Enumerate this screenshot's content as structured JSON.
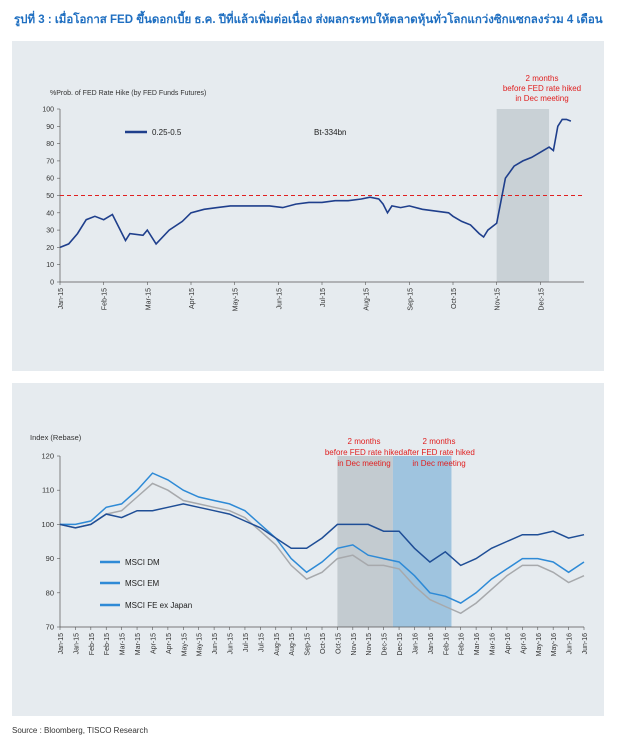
{
  "title": "รูปที่ 3 : เมื่อโอกาส FED ขึ้นดอกเบี้ย ธ.ค. ปีที่แล้วเพิ่มต่อเนื่อง ส่งผลกระทบให้ตลาดหุ้นทั่วโลกแกว่งซิกแซกลงร่วม 4 เดือน",
  "source": "Source : Bloomberg, TISCO Research",
  "chart_data": [
    {
      "type": "line",
      "title": "",
      "ylabel": "%Prob. of FED Rate Hike (by FED Funds Futures)",
      "xlabel": "",
      "ylim": [
        0,
        100
      ],
      "yticks": [
        "0",
        "10",
        "20",
        "30",
        "40",
        "50",
        "60",
        "70",
        "80",
        "90",
        "100"
      ],
      "x_tick_labels": [
        "Jan-15",
        "Feb-15",
        "Mar-15",
        "Apr-15",
        "May-15",
        "Jun-15",
        "Jul-15",
        "Aug-15",
        "Sep-15",
        "Oct-15",
        "Nov-15",
        "Dec-15"
      ],
      "legend": {
        "position": "top-left",
        "entries": [
          "0.25-0.5"
        ],
        "note": "Bt-334bn"
      },
      "reference_line": {
        "y": 50,
        "style": "dashed",
        "color": "#e02020"
      },
      "shaded_regions": [
        {
          "from": "Nov-15",
          "to": "Dec-15",
          "label_lines": [
            "2 months",
            "before FED rate hiked",
            "in Dec meeting"
          ],
          "color": "#c9d1d6"
        }
      ],
      "series": [
        {
          "name": "0.25-0.5",
          "color": "#1f3f8c",
          "x": [
            0,
            0.2,
            0.4,
            0.6,
            0.8,
            1.0,
            1.2,
            1.5,
            1.6,
            1.9,
            2.0,
            2.2,
            2.5,
            2.8,
            3.0,
            3.3,
            3.6,
            3.9,
            4.2,
            4.5,
            4.8,
            5.1,
            5.4,
            5.7,
            6.0,
            6.3,
            6.6,
            6.9,
            7.1,
            7.3,
            7.4,
            7.5,
            7.6,
            7.8,
            8.0,
            8.3,
            8.6,
            8.9,
            9.0,
            9.2,
            9.4,
            9.6,
            9.7,
            9.8,
            9.9,
            10.0,
            10.2,
            10.4,
            10.6,
            10.8,
            11.0,
            11.2,
            11.3,
            11.4,
            11.5,
            11.6,
            11.7
          ],
          "y": [
            20,
            22,
            28,
            36,
            38,
            36,
            39,
            24,
            28,
            27,
            30,
            22,
            30,
            35,
            40,
            42,
            43,
            44,
            44,
            44,
            44,
            43,
            45,
            46,
            46,
            47,
            47,
            48,
            49,
            48,
            45,
            40,
            44,
            43,
            44,
            42,
            41,
            40,
            38,
            35,
            33,
            28,
            26,
            30,
            32,
            34,
            60,
            67,
            70,
            72,
            75,
            78,
            76,
            90,
            94,
            94,
            93
          ]
        }
      ]
    },
    {
      "type": "line",
      "title": "",
      "ylabel": "Index (Rebase)",
      "xlabel": "",
      "ylim": [
        70,
        120
      ],
      "yticks": [
        "70",
        "80",
        "90",
        "100",
        "110",
        "120"
      ],
      "x_tick_labels": [
        "Jan-15",
        "Feb-15",
        "Mar-15",
        "Apr-15",
        "May-15",
        "Jun-15",
        "Jul-15",
        "Aug-15",
        "Sep-15",
        "Oct-15",
        "Nov-15",
        "Dec-15",
        "Jan-16",
        "Feb-16",
        "Mar-16",
        "Apr-16",
        "May-16",
        "Jun-16"
      ],
      "x_tick_labels_dense": [
        "Jan-15",
        "Jan-15",
        "Feb-15",
        "Feb-15",
        "Mar-15",
        "Mar-15",
        "Apr-15",
        "Apr-15",
        "May-15",
        "May-15",
        "Jun-15",
        "Jun-15",
        "Jul-15",
        "Jul-15",
        "Aug-15",
        "Aug-15",
        "Sep-15",
        "Oct-15",
        "Oct-15",
        "Nov-15",
        "Nov-15",
        "Dec-15",
        "Dec-15",
        "Jan-16",
        "Jan-16",
        "Feb-16",
        "Feb-16",
        "Mar-16",
        "Mar-16",
        "Apr-16",
        "Apr-16",
        "May-16",
        "May-16",
        "Jun-16",
        "Jun-16"
      ],
      "legend": {
        "position": "bottom-left",
        "entries": [
          "MSCI DM",
          "MSCI EM",
          "MSCI FE ex Japan"
        ]
      },
      "shaded_regions": [
        {
          "from": "Oct-15",
          "to": "Dec-15",
          "label_lines": [
            "2 months",
            "before FED rate hiked",
            "in Dec meeting"
          ],
          "color": "#c3cbd0"
        },
        {
          "from": "Dec-15",
          "to": "Feb-16",
          "label_lines": [
            "2 months",
            "after FED rate hiked",
            "in Dec meeting"
          ],
          "color": "#9fc4df"
        }
      ],
      "series": [
        {
          "name": "MSCI DM",
          "color": "#1f4e96",
          "x": [
            0,
            0.5,
            1.0,
            1.5,
            2.0,
            2.5,
            3.0,
            3.5,
            4.0,
            4.5,
            5.0,
            5.5,
            6.0,
            6.5,
            7.0,
            7.5,
            8.0,
            8.5,
            9.0,
            9.5,
            10.0,
            10.5,
            11.0,
            11.5,
            12.0,
            12.5,
            13.0,
            13.5,
            14.0,
            14.5,
            15.0,
            15.5,
            16.0,
            16.5,
            17.0
          ],
          "y": [
            100,
            99,
            100,
            103,
            102,
            104,
            104,
            105,
            106,
            105,
            104,
            103,
            101,
            99,
            96,
            93,
            93,
            96,
            100,
            100,
            100,
            98,
            98,
            93,
            89,
            92,
            88,
            90,
            93,
            95,
            97,
            97,
            98,
            96,
            97
          ]
        },
        {
          "name": "MSCI EM",
          "color": "#2e8ad6",
          "x": [
            0,
            0.5,
            1.0,
            1.5,
            2.0,
            2.5,
            3.0,
            3.5,
            4.0,
            4.5,
            5.0,
            5.5,
            6.0,
            6.5,
            7.0,
            7.5,
            8.0,
            8.5,
            9.0,
            9.5,
            10.0,
            10.5,
            11.0,
            11.5,
            12.0,
            12.5,
            13.0,
            13.5,
            14.0,
            14.5,
            15.0,
            15.5,
            16.0,
            16.5,
            17.0
          ],
          "y": [
            100,
            100,
            101,
            105,
            106,
            110,
            115,
            113,
            110,
            108,
            107,
            106,
            104,
            100,
            96,
            90,
            86,
            89,
            93,
            94,
            91,
            90,
            89,
            85,
            80,
            79,
            77,
            80,
            84,
            87,
            90,
            90,
            89,
            86,
            89
          ]
        },
        {
          "name": "MSCI FE ex Japan",
          "color": "#a7a9ac",
          "x": [
            0,
            0.5,
            1.0,
            1.5,
            2.0,
            2.5,
            3.0,
            3.5,
            4.0,
            4.5,
            5.0,
            5.5,
            6.0,
            6.5,
            7.0,
            7.5,
            8.0,
            8.5,
            9.0,
            9.5,
            10.0,
            10.5,
            11.0,
            11.5,
            12.0,
            12.5,
            13.0,
            13.5,
            14.0,
            14.5,
            15.0,
            15.5,
            16.0,
            16.5,
            17.0
          ],
          "y": [
            100,
            99,
            100,
            103,
            104,
            108,
            112,
            110,
            107,
            106,
            105,
            104,
            102,
            98,
            94,
            88,
            84,
            86,
            90,
            91,
            88,
            88,
            87,
            82,
            78,
            76,
            74,
            77,
            81,
            85,
            88,
            88,
            86,
            83,
            85
          ]
        }
      ]
    }
  ]
}
